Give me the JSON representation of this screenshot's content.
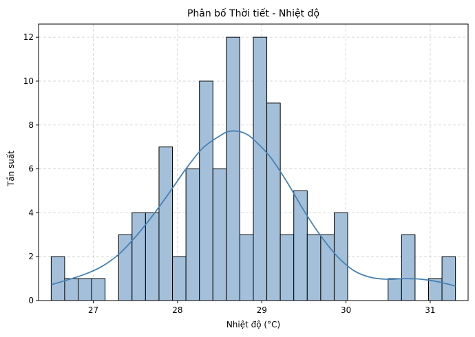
{
  "chart_data": {
    "type": "bar",
    "title": "Phân bố Thời tiết - Nhiệt độ",
    "xlabel": "Nhiệt độ (°C)",
    "ylabel": "Tần suất",
    "xlim": [
      26.35,
      31.45
    ],
    "ylim": [
      0,
      12.6
    ],
    "x_ticks": [
      27,
      28,
      29,
      30,
      31
    ],
    "y_ticks": [
      0,
      2,
      4,
      6,
      8,
      10,
      12
    ],
    "grid": true,
    "bin_start": 26.5,
    "bin_width": 0.16,
    "counts": [
      2,
      1,
      1,
      1,
      0,
      3,
      4,
      4,
      7,
      2,
      6,
      10,
      6,
      12,
      3,
      12,
      9,
      3,
      5,
      3,
      3,
      4,
      0,
      0,
      0,
      1,
      3,
      0,
      1,
      2
    ],
    "kde_x": [
      26.5,
      26.7,
      26.9,
      27.1,
      27.3,
      27.5,
      27.7,
      27.9,
      28.1,
      28.3,
      28.5,
      28.6,
      28.7,
      28.8,
      28.9,
      29.1,
      29.3,
      29.5,
      29.7,
      29.9,
      30.1,
      30.3,
      30.5,
      30.7,
      30.9,
      31.1,
      31.3
    ],
    "kde_y": [
      0.72,
      0.95,
      1.2,
      1.55,
      2.1,
      2.9,
      3.85,
      4.9,
      6.0,
      6.95,
      7.5,
      7.7,
      7.72,
      7.62,
      7.35,
      6.55,
      5.4,
      4.1,
      2.95,
      2.0,
      1.35,
      1.05,
      0.97,
      1.0,
      0.97,
      0.85,
      0.66
    ],
    "bar_color": "#a3bfd9",
    "bar_edge_color": "#000000",
    "line_color": "#4682b4"
  }
}
